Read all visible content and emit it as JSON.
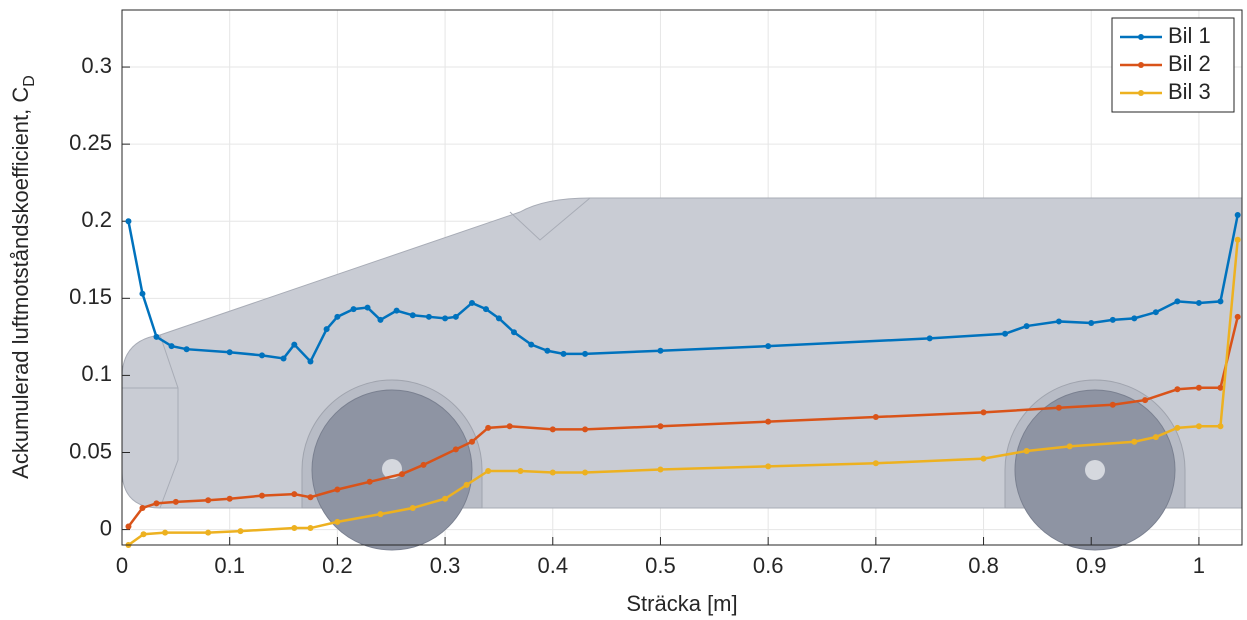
{
  "chart_data": {
    "type": "line",
    "xlabel": "Sträcka [m]",
    "ylabel": "Ackumulerad luftmotståndskoefficient, C",
    "ylabel_subscript": "D",
    "xlim": [
      0,
      1.04
    ],
    "ylim": [
      -0.01,
      0.337
    ],
    "xticks": [
      0,
      0.1,
      0.2,
      0.3,
      0.4,
      0.5,
      0.6,
      0.7,
      0.8,
      0.9,
      1
    ],
    "yticks": [
      0,
      0.05,
      0.1,
      0.15,
      0.2,
      0.25,
      0.3
    ],
    "grid": true,
    "legend": "top-right",
    "series": [
      {
        "name": "Bil 1",
        "color": "#0072bd",
        "x": [
          0.006,
          0.019,
          0.032,
          0.046,
          0.06,
          0.1,
          0.13,
          0.15,
          0.16,
          0.175,
          0.19,
          0.2,
          0.215,
          0.228,
          0.24,
          0.255,
          0.27,
          0.285,
          0.3,
          0.31,
          0.325,
          0.338,
          0.35,
          0.364,
          0.38,
          0.395,
          0.41,
          0.43,
          0.5,
          0.6,
          0.75,
          0.82,
          0.84,
          0.87,
          0.9,
          0.92,
          0.94,
          0.96,
          0.98,
          1.0,
          1.02,
          1.036
        ],
        "values": [
          0.2,
          0.153,
          0.125,
          0.119,
          0.117,
          0.115,
          0.113,
          0.111,
          0.12,
          0.109,
          0.13,
          0.138,
          0.143,
          0.144,
          0.136,
          0.142,
          0.139,
          0.138,
          0.137,
          0.138,
          0.147,
          0.143,
          0.137,
          0.128,
          0.12,
          0.116,
          0.114,
          0.114,
          0.116,
          0.119,
          0.124,
          0.127,
          0.132,
          0.135,
          0.134,
          0.136,
          0.137,
          0.141,
          0.148,
          0.147,
          0.148,
          0.204
        ]
      },
      {
        "name": "Bil 2",
        "color": "#d95319",
        "x": [
          0.006,
          0.019,
          0.032,
          0.05,
          0.08,
          0.1,
          0.13,
          0.16,
          0.175,
          0.2,
          0.23,
          0.26,
          0.28,
          0.31,
          0.325,
          0.34,
          0.36,
          0.4,
          0.43,
          0.5,
          0.6,
          0.7,
          0.8,
          0.87,
          0.92,
          0.95,
          0.98,
          1.0,
          1.02,
          1.036
        ],
        "values": [
          0.002,
          0.014,
          0.017,
          0.018,
          0.019,
          0.02,
          0.022,
          0.023,
          0.021,
          0.026,
          0.031,
          0.036,
          0.042,
          0.052,
          0.057,
          0.066,
          0.067,
          0.065,
          0.065,
          0.067,
          0.07,
          0.073,
          0.076,
          0.079,
          0.081,
          0.084,
          0.091,
          0.092,
          0.092,
          0.138
        ]
      },
      {
        "name": "Bil 3",
        "color": "#edb120",
        "x": [
          0.006,
          0.02,
          0.04,
          0.08,
          0.11,
          0.16,
          0.175,
          0.2,
          0.24,
          0.27,
          0.3,
          0.32,
          0.34,
          0.37,
          0.4,
          0.43,
          0.5,
          0.6,
          0.7,
          0.8,
          0.84,
          0.88,
          0.94,
          0.96,
          0.98,
          1.0,
          1.02,
          1.036
        ],
        "values": [
          -0.01,
          -0.003,
          -0.002,
          -0.002,
          -0.001,
          0.001,
          0.001,
          0.005,
          0.01,
          0.014,
          0.02,
          0.029,
          0.038,
          0.038,
          0.037,
          0.037,
          0.039,
          0.041,
          0.043,
          0.046,
          0.051,
          0.054,
          0.057,
          0.06,
          0.066,
          0.067,
          0.067,
          0.188
        ]
      }
    ]
  }
}
